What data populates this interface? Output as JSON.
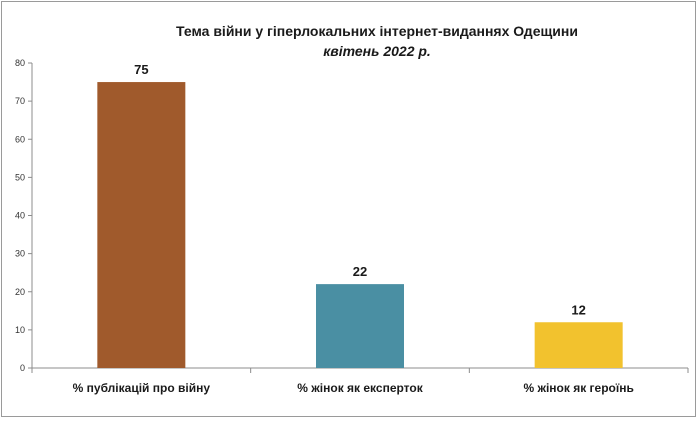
{
  "chart_data": {
    "type": "bar",
    "title": "Тема війни у гіперлокальних  інтернет-виданнях  Одещини",
    "subtitle": "квітень 2022 р.",
    "xlabel": "",
    "ylabel": "",
    "categories": [
      "% публікацій про війну",
      "% жінок як експерток",
      "% жінок як героїнь"
    ],
    "values": [
      75,
      22,
      12
    ],
    "colors": [
      "#a05a2c",
      "#4a8fa3",
      "#f2c22e"
    ],
    "ylim": [
      0,
      80
    ],
    "yticks": [
      0,
      10,
      20,
      30,
      40,
      50,
      60,
      70,
      80
    ],
    "grid": false,
    "legend": "none",
    "data_labels": true
  }
}
